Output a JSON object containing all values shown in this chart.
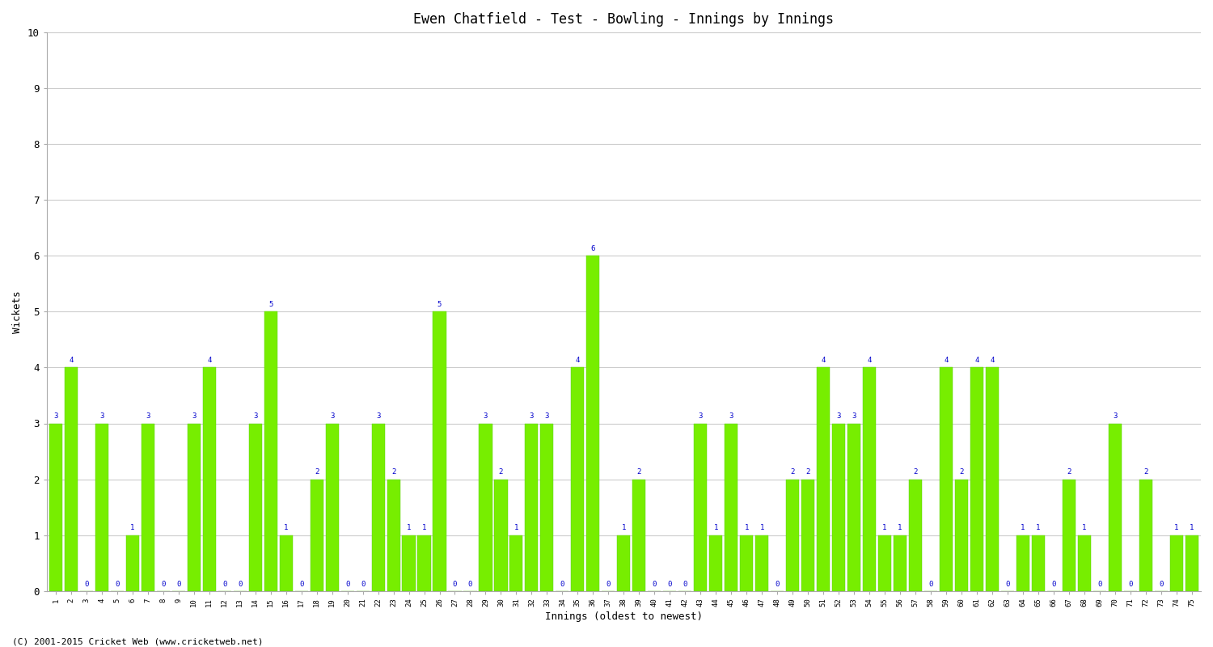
{
  "title": "Ewen Chatfield - Test - Bowling - Innings by Innings",
  "xlabel": "Innings (oldest to newest)",
  "ylabel": "Wickets",
  "ylim": [
    0,
    10
  ],
  "yticks": [
    0,
    1,
    2,
    3,
    4,
    5,
    6,
    7,
    8,
    9,
    10
  ],
  "bar_color": "#77ee00",
  "bar_edge_color": "#55cc00",
  "label_color": "#0000cc",
  "background_color": "#ffffff",
  "plot_bg_color": "#ffffff",
  "innings": [
    1,
    2,
    3,
    4,
    5,
    6,
    7,
    8,
    9,
    10,
    11,
    12,
    13,
    14,
    15,
    16,
    17,
    18,
    19,
    20,
    21,
    22,
    23,
    24,
    25,
    26,
    27,
    28,
    29,
    30,
    31,
    32,
    33,
    34,
    35,
    36,
    37,
    38,
    39,
    40,
    41,
    42,
    43,
    44,
    45,
    46,
    47,
    48,
    49,
    50,
    51,
    52,
    53,
    54,
    55,
    56,
    57,
    58,
    59,
    60,
    61,
    62,
    63,
    64,
    65,
    66,
    67,
    68,
    69,
    70,
    71,
    72,
    73,
    74,
    75
  ],
  "wickets": [
    3,
    4,
    0,
    3,
    0,
    1,
    3,
    0,
    0,
    3,
    4,
    0,
    0,
    3,
    5,
    1,
    0,
    2,
    3,
    0,
    0,
    3,
    2,
    1,
    1,
    5,
    0,
    0,
    3,
    2,
    1,
    3,
    3,
    0,
    4,
    6,
    0,
    1,
    2,
    0,
    0,
    0,
    3,
    1,
    3,
    1,
    1,
    0,
    2,
    2,
    4,
    3,
    3,
    4,
    1,
    1,
    2,
    0,
    4,
    2,
    4,
    4,
    0,
    1,
    1,
    0,
    2,
    1,
    0,
    3,
    0,
    2,
    0,
    1,
    1
  ],
  "footer": "(C) 2001-2015 Cricket Web (www.cricketweb.net)"
}
